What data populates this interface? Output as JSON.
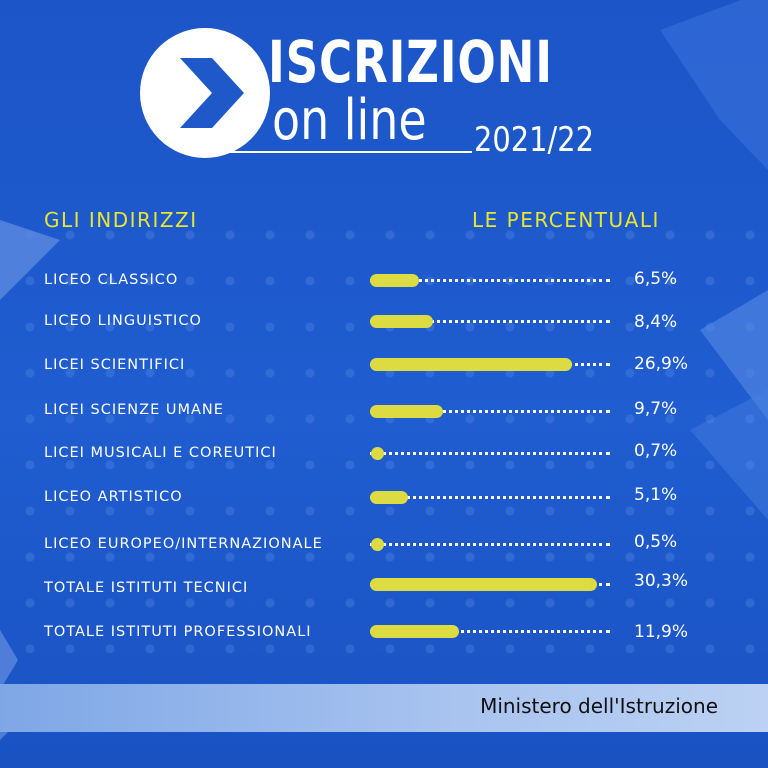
{
  "header": {
    "title_line1": "ISCRIZIONI",
    "title_line2": "on line",
    "year": "2021/22"
  },
  "columns": {
    "left": "GLI INDIRIZZI",
    "right": "LE PERCENTUALI"
  },
  "chart_data": {
    "type": "bar",
    "orientation": "horizontal",
    "categories": [
      "LICEO CLASSICO",
      "LICEO LINGUISTICO",
      "LICEI SCIENTIFICI",
      "LICEI SCIENZE UMANE",
      "LICEI MUSICALI E COREUTICI",
      "LICEO ARTISTICO",
      "LICEO EUROPEO/INTERNAZIONALE",
      "TOTALE ISTITUTI TECNICI",
      "TOTALE ISTITUTI PROFESSIONALI"
    ],
    "values": [
      6.5,
      8.4,
      26.9,
      9.7,
      0.7,
      5.1,
      0.5,
      30.3,
      11.9
    ],
    "labels": [
      "6,5%",
      "8,4%",
      "26,9%",
      "9,7%",
      "0,7%",
      "5,1%",
      "0,5%",
      "30,3%",
      "11,9%"
    ],
    "xlim": [
      0,
      32
    ],
    "bar_color": "#dcdb42",
    "background_color": "#1f59c9"
  },
  "footer": {
    "text": "Ministero dell'Istruzione"
  }
}
